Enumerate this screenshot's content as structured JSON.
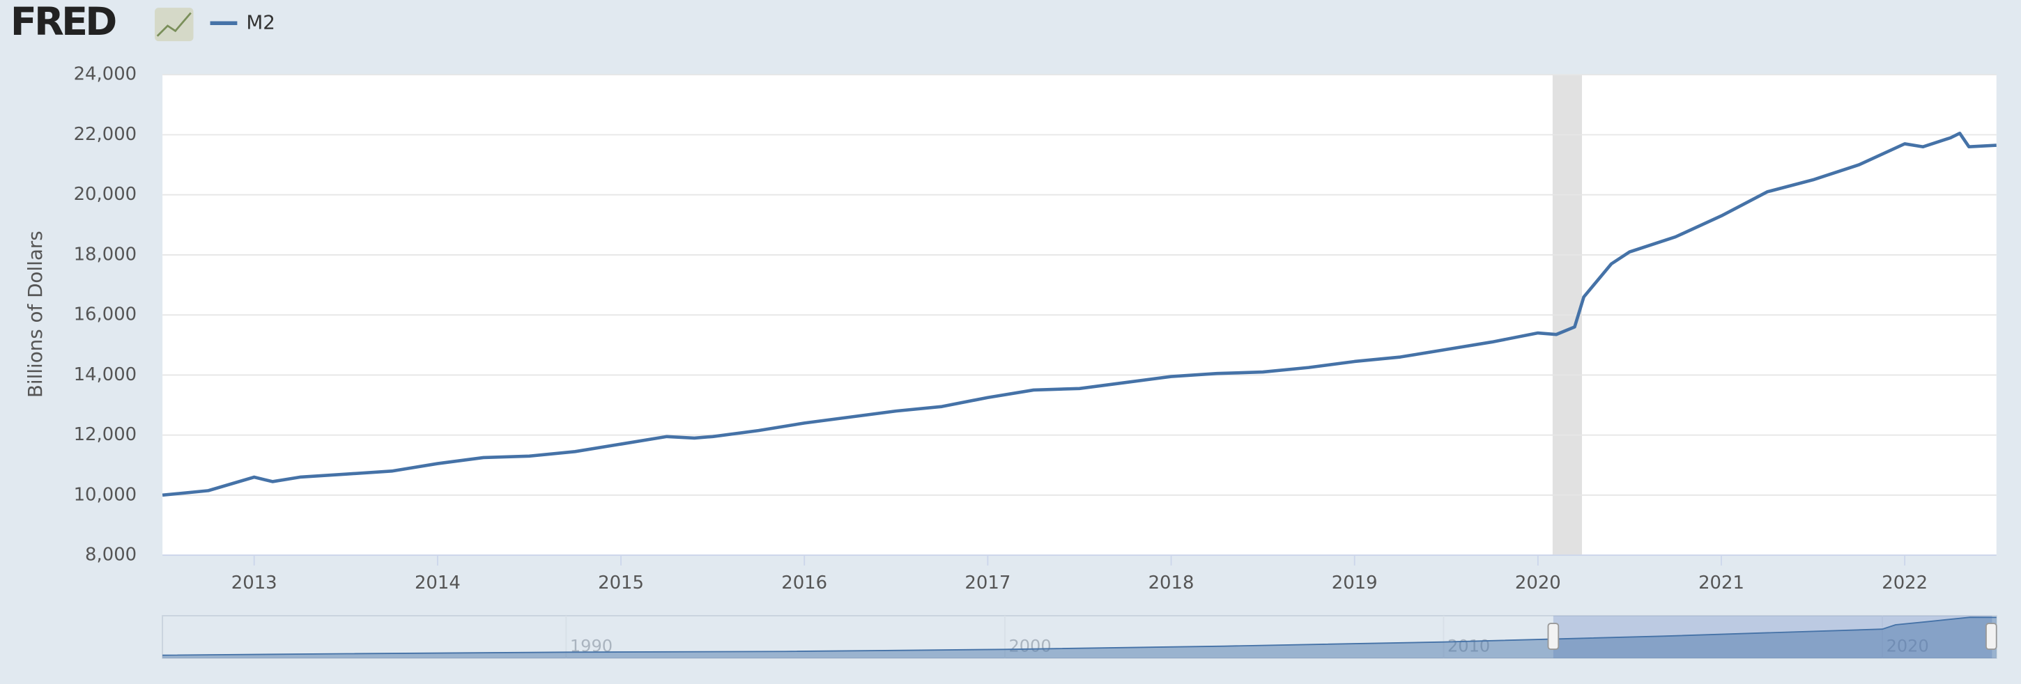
{
  "logo": "FRED",
  "chart_data": {
    "type": "line",
    "ylabel": "Billions of Dollars",
    "x": [
      2012.5,
      2012.75,
      2013.0,
      2013.1,
      2013.25,
      2013.5,
      2013.75,
      2014.0,
      2014.25,
      2014.5,
      2014.75,
      2015.0,
      2015.25,
      2015.4,
      2015.5,
      2015.75,
      2016.0,
      2016.25,
      2016.5,
      2016.75,
      2017.0,
      2017.25,
      2017.5,
      2017.75,
      2018.0,
      2018.25,
      2018.5,
      2018.75,
      2019.0,
      2019.25,
      2019.5,
      2019.75,
      2020.0,
      2020.1,
      2020.2,
      2020.25,
      2020.4,
      2020.5,
      2020.75,
      2021.0,
      2021.25,
      2021.5,
      2021.75,
      2022.0,
      2022.1,
      2022.25,
      2022.3,
      2022.35,
      2022.5
    ],
    "series": [
      {
        "name": "M2",
        "color": "#4572a7",
        "values": [
          10000,
          10150,
          10600,
          10450,
          10600,
          10700,
          10800,
          11050,
          11250,
          11300,
          11450,
          11700,
          11950,
          11900,
          11950,
          12150,
          12400,
          12600,
          12800,
          12950,
          13250,
          13500,
          13550,
          13750,
          13950,
          14050,
          14100,
          14250,
          14450,
          14600,
          14850,
          15100,
          15400,
          15350,
          15600,
          16600,
          17700,
          18100,
          18600,
          19300,
          20100,
          20500,
          21000,
          21700,
          21600,
          21900,
          22050,
          21600,
          21650
        ]
      }
    ],
    "xlim": [
      2012.5,
      2022.5
    ],
    "xticks": [
      2013,
      2014,
      2015,
      2016,
      2017,
      2018,
      2019,
      2020,
      2021,
      2022
    ],
    "ylim": [
      8000,
      24000
    ],
    "yticks": [
      {
        "value": 8000,
        "label": "8,000"
      },
      {
        "value": 10000,
        "label": "10,000"
      },
      {
        "value": 12000,
        "label": "12,000"
      },
      {
        "value": 14000,
        "label": "14,000"
      },
      {
        "value": 16000,
        "label": "16,000"
      },
      {
        "value": 18000,
        "label": "18,000"
      },
      {
        "value": 20000,
        "label": "20,000"
      },
      {
        "value": 22000,
        "label": "22,000"
      },
      {
        "value": 24000,
        "label": "24,000"
      }
    ],
    "grid": true,
    "recession": [
      2020.08,
      2020.24
    ],
    "navigator": {
      "x": [
        1980.8,
        1985,
        1990,
        1995,
        2000,
        2005,
        2010,
        2015,
        2020,
        2020.3,
        2021,
        2022,
        2022.6
      ],
      "values": [
        1600,
        2400,
        3200,
        3600,
        4700,
        6400,
        8600,
        11700,
        15400,
        17700,
        19300,
        21700,
        21650
      ],
      "xlim": [
        1980.8,
        2022.6
      ],
      "ylim": [
        0,
        22500
      ],
      "xticks": [
        1990,
        2000,
        2010,
        2020
      ]
    }
  }
}
